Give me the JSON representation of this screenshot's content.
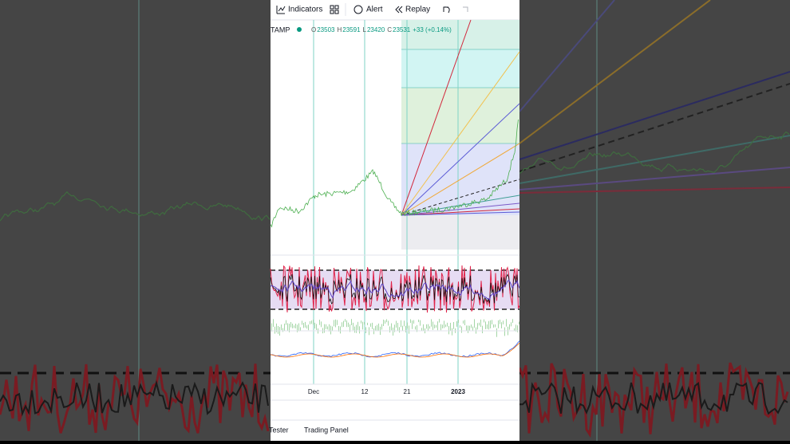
{
  "toolbar": {
    "indicators": "Indicators",
    "alert": "Alert",
    "replay": "Replay"
  },
  "legend": {
    "symbol": "TAMP",
    "ohlc": [
      {
        "key": "O",
        "value": 23503
      },
      {
        "key": "H",
        "value": 23591
      },
      {
        "key": "L",
        "value": 23420
      },
      {
        "key": "C",
        "value": 23531
      }
    ],
    "change": "+33 (+0.14%)"
  },
  "time_axis": [
    "Dec",
    "12",
    "21",
    "2023"
  ],
  "bottom_tabs": [
    "Tester",
    "Trading Panel"
  ]
}
